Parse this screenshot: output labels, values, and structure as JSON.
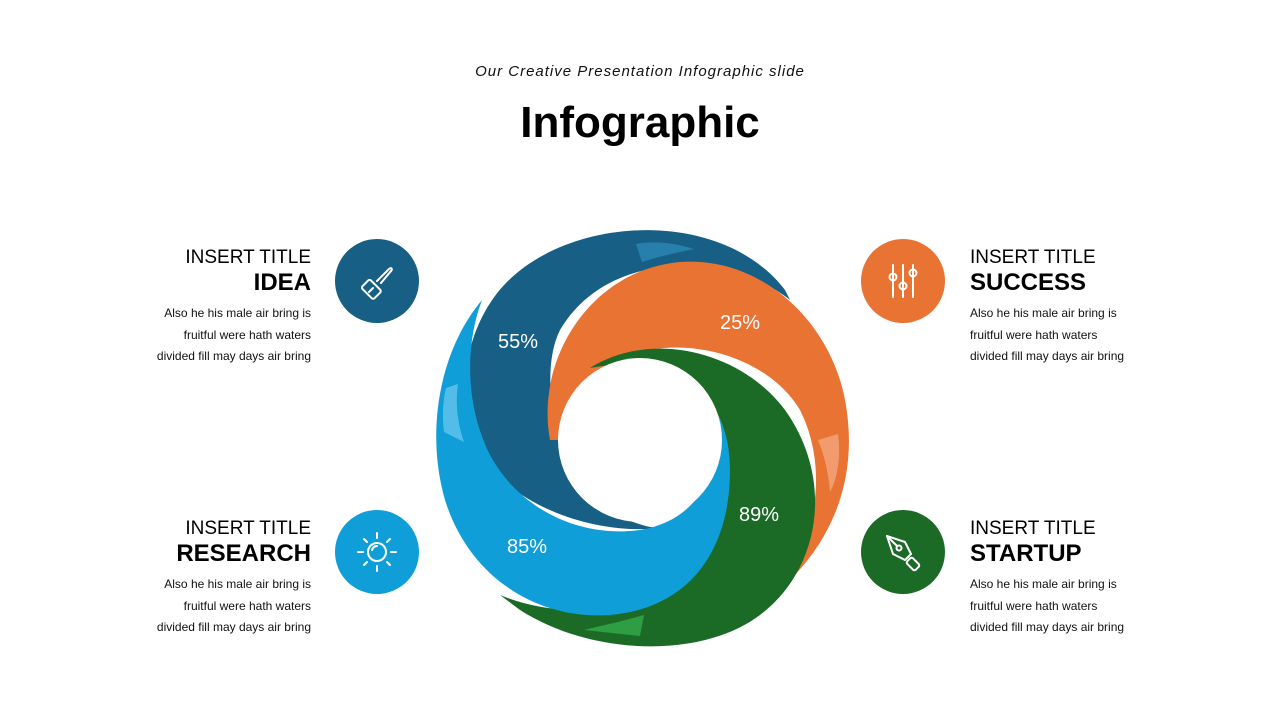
{
  "header": {
    "subtitle": "Our Creative Presentation Infographic slide",
    "title": "Infographic"
  },
  "colors": {
    "navy": "#175f84",
    "orange": "#e87333",
    "green": "#1b6b26",
    "blue": "#109ed8"
  },
  "segments": [
    {
      "label": "55%",
      "color": "navy"
    },
    {
      "label": "25%",
      "color": "orange"
    },
    {
      "label": "89%",
      "color": "green"
    },
    {
      "label": "85%",
      "color": "blue"
    }
  ],
  "items": {
    "idea": {
      "overline": "INSERT TITLE",
      "heading": "IDEA",
      "description": [
        "Also he his male air bring is",
        "fruitful were hath waters",
        "divided fill may days air bring"
      ],
      "icon": "brush-icon"
    },
    "success": {
      "overline": "INSERT TITLE",
      "heading": "SUCCESS",
      "description": [
        "Also he his male air bring is",
        "fruitful were hath waters",
        "divided fill may days air bring"
      ],
      "icon": "sliders-icon"
    },
    "research": {
      "overline": "INSERT TITLE",
      "heading": "RESEARCH",
      "description": [
        "Also he his male air bring is",
        "fruitful were hath waters",
        "divided fill may days air bring"
      ],
      "icon": "sun-icon"
    },
    "startup": {
      "overline": "INSERT TITLE",
      "heading": "STARTUP",
      "description": [
        "Also he his male air bring is",
        "fruitful were hath waters",
        "divided fill may days air bring"
      ],
      "icon": "pen-nib-icon"
    }
  }
}
